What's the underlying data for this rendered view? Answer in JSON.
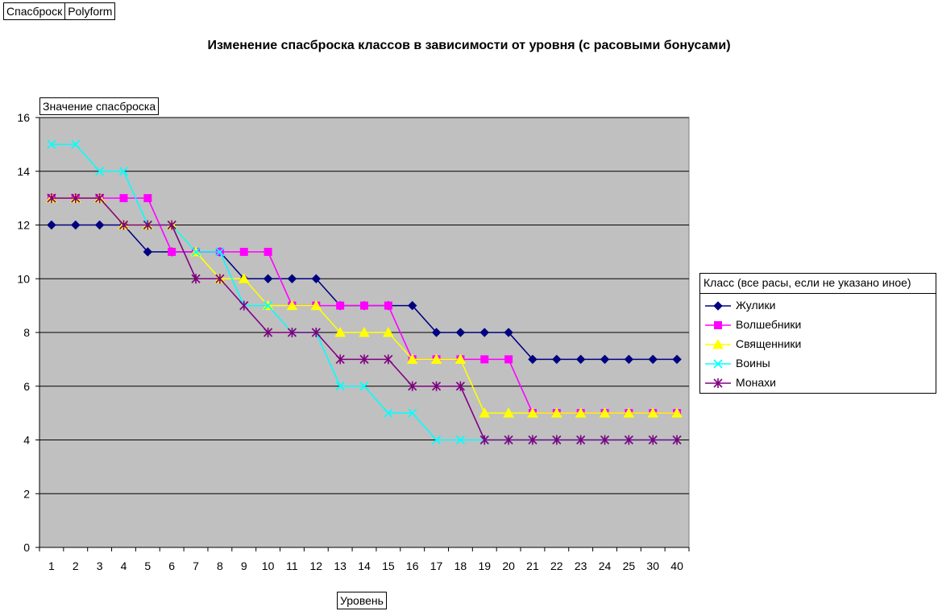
{
  "tabs": [
    "Спасброск",
    "Polyform"
  ],
  "chart_data": {
    "type": "line",
    "title": "Изменение спасброска классов в зависимости от уровня (с расовыми бонусами)",
    "xlabel": "Уровень",
    "ylabel": "Значение спасброска",
    "categories": [
      "1",
      "2",
      "3",
      "4",
      "5",
      "6",
      "7",
      "8",
      "9",
      "10",
      "11",
      "12",
      "13",
      "14",
      "15",
      "16",
      "17",
      "18",
      "19",
      "20",
      "21",
      "22",
      "23",
      "24",
      "25",
      "30",
      "40"
    ],
    "ylim": [
      0,
      16
    ],
    "yticks": [
      0,
      2,
      4,
      6,
      8,
      10,
      12,
      14,
      16
    ],
    "grid": true,
    "legend_title": "Класс (все расы, если не указано иное)",
    "legend_position": "right",
    "series": [
      {
        "name": "Жулики",
        "color": "#000080",
        "marker": "diamond",
        "values": [
          12,
          12,
          12,
          12,
          11,
          11,
          11,
          11,
          10,
          10,
          10,
          10,
          9,
          9,
          9,
          9,
          8,
          8,
          8,
          8,
          7,
          7,
          7,
          7,
          7,
          7,
          7
        ]
      },
      {
        "name": "Волшебники",
        "color": "#ff00ff",
        "marker": "square",
        "values": [
          13,
          13,
          13,
          13,
          13,
          11,
          11,
          11,
          11,
          11,
          9,
          9,
          9,
          9,
          9,
          7,
          7,
          7,
          7,
          7,
          5,
          5,
          5,
          5,
          5,
          5,
          5
        ]
      },
      {
        "name": "Священники",
        "color": "#ffff00",
        "marker": "triangle",
        "values": [
          13,
          13,
          13,
          12,
          12,
          12,
          11,
          10,
          10,
          9,
          9,
          9,
          8,
          8,
          8,
          7,
          7,
          7,
          5,
          5,
          5,
          5,
          5,
          5,
          5,
          5,
          5
        ]
      },
      {
        "name": "Воины",
        "color": "#00ffff",
        "marker": "x",
        "values": [
          15,
          15,
          14,
          14,
          12,
          12,
          11,
          11,
          9,
          9,
          8,
          8,
          6,
          6,
          5,
          5,
          4,
          4,
          4,
          4,
          4,
          4,
          4,
          4,
          4,
          4,
          4
        ]
      },
      {
        "name": "Монахи",
        "color": "#800080",
        "marker": "star",
        "values": [
          13,
          13,
          13,
          12,
          12,
          12,
          10,
          10,
          9,
          8,
          8,
          8,
          7,
          7,
          7,
          6,
          6,
          6,
          4,
          4,
          4,
          4,
          4,
          4,
          4,
          4,
          4
        ]
      }
    ]
  }
}
